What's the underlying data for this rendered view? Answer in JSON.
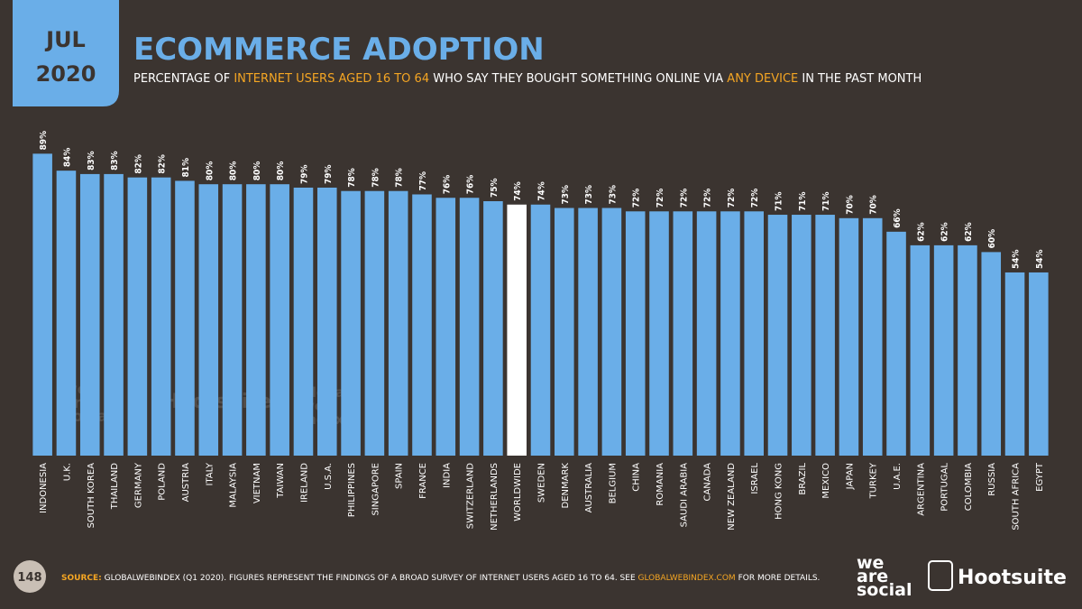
{
  "header": {
    "month": "JUL",
    "year": "2020"
  },
  "chart_data": {
    "type": "bar",
    "title": "ECOMMERCE ADOPTION",
    "subtitle": [
      "PERCENTAGE OF ",
      "INTERNET USERS AGED 16 TO 64",
      " WHO SAY THEY BOUGHT SOMETHING ONLINE VIA ",
      "ANY DEVICE",
      " IN THE PAST MONTH"
    ],
    "categories": [
      "INDONESIA",
      "U.K.",
      "SOUTH KOREA",
      "THAILAND",
      "GERMANY",
      "POLAND",
      "AUSTRIA",
      "ITALY",
      "MALAYSIA",
      "VIETNAM",
      "TAIWAN",
      "IRELAND",
      "U.S.A.",
      "PHILIPPINES",
      "SINGAPORE",
      "SPAIN",
      "FRANCE",
      "INDIA",
      "SWITZERLAND",
      "NETHERLANDS",
      "WORLDWIDE",
      "SWEDEN",
      "DENMARK",
      "AUSTRALIA",
      "BELGIUM",
      "CHINA",
      "ROMANIA",
      "SAUDI ARABIA",
      "CANADA",
      "NEW ZEALAND",
      "ISRAEL",
      "HONG KONG",
      "BRAZIL",
      "MEXICO",
      "JAPAN",
      "TURKEY",
      "U.A.E.",
      "ARGENTINA",
      "PORTUGAL",
      "COLOMBIA",
      "RUSSIA",
      "SOUTH AFRICA",
      "EGYPT"
    ],
    "values": [
      89,
      84,
      83,
      83,
      82,
      82,
      81,
      80,
      80,
      80,
      80,
      79,
      79,
      78,
      78,
      78,
      77,
      76,
      76,
      75,
      74,
      74,
      73,
      73,
      73,
      72,
      72,
      72,
      72,
      72,
      72,
      71,
      71,
      71,
      70,
      70,
      66,
      62,
      62,
      62,
      60,
      54,
      54
    ],
    "value_labels": [
      "89%",
      "84%",
      "83%",
      "83%",
      "82%",
      "82%",
      "81%",
      "80%",
      "80%",
      "80%",
      "80%",
      "79%",
      "79%",
      "78%",
      "78%",
      "78%",
      "77%",
      "76%",
      "76%",
      "75%",
      "74%",
      "74%",
      "73%",
      "73%",
      "73%",
      "72%",
      "72%",
      "72%",
      "72%",
      "72%",
      "72%",
      "71%",
      "71%",
      "71%",
      "70%",
      "70%",
      "66%",
      "62%",
      "62%",
      "62%",
      "60%",
      "54%",
      "54%"
    ],
    "color": "#6aaee8",
    "highlight_category": "WORLDWIDE",
    "highlight_color": "#ffffff"
  },
  "footer": {
    "page": "148",
    "source": [
      "SOURCE:",
      " GLOBALWEBINDEX (Q1 2020). FIGURES REPRESENT THE FINDINGS OF A BROAD SURVEY OF INTERNET USERS AGED 16 TO 64. SEE ",
      "GLOBALWEBINDEX.COM",
      " FOR MORE DETAILS."
    ]
  },
  "logos": {
    "we_are_social": [
      "we",
      "are",
      "social"
    ],
    "hootsuite": "Hootsuite",
    "globalwebindex": [
      "global",
      "web",
      "index"
    ]
  }
}
